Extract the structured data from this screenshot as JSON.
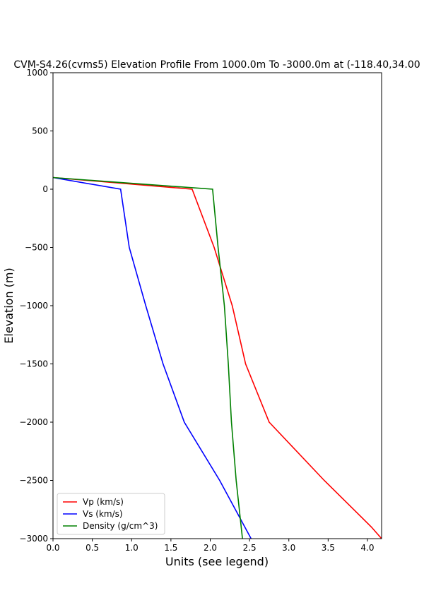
{
  "chart_data": {
    "type": "line",
    "title": "CVM-S4.26(cvms5) Elevation Profile From 1000.0m To -3000.0m at (-118.40,34.00",
    "xlabel": "Units (see legend)",
    "ylabel": "Elevation (m)",
    "xlim": [
      0.0,
      4.18
    ],
    "ylim": [
      -3000,
      1000
    ],
    "xticks": [
      "0.0",
      "0.5",
      "1.0",
      "1.5",
      "2.0",
      "2.5",
      "3.0",
      "3.5",
      "4.0"
    ],
    "yticks": [
      "1000",
      "500",
      "0",
      "−500",
      "−1000",
      "−1500",
      "−2000",
      "−2500",
      "−3000"
    ],
    "grid": false,
    "legend_position": "lower-left",
    "series": [
      {
        "name": "Vp (km/s)",
        "color": "#ff0000",
        "points": [
          [
            0.0,
            100
          ],
          [
            1.77,
            0
          ],
          [
            2.05,
            -500
          ],
          [
            2.28,
            -1000
          ],
          [
            2.45,
            -1500
          ],
          [
            2.75,
            -2000
          ],
          [
            3.45,
            -2500
          ],
          [
            4.05,
            -2900
          ],
          [
            4.18,
            -3000
          ]
        ]
      },
      {
        "name": "Vs (km/s)",
        "color": "#0000ff",
        "points": [
          [
            0.0,
            100
          ],
          [
            0.86,
            0
          ],
          [
            0.97,
            -500
          ],
          [
            1.18,
            -1000
          ],
          [
            1.4,
            -1500
          ],
          [
            1.67,
            -2000
          ],
          [
            2.12,
            -2500
          ],
          [
            2.52,
            -3000
          ]
        ]
      },
      {
        "name": "Density (g/cm^3)",
        "color": "#008000",
        "points": [
          [
            0.0,
            100
          ],
          [
            2.03,
            0
          ],
          [
            2.1,
            -500
          ],
          [
            2.18,
            -1000
          ],
          [
            2.23,
            -1500
          ],
          [
            2.27,
            -2000
          ],
          [
            2.33,
            -2500
          ],
          [
            2.41,
            -3000
          ]
        ]
      }
    ]
  }
}
